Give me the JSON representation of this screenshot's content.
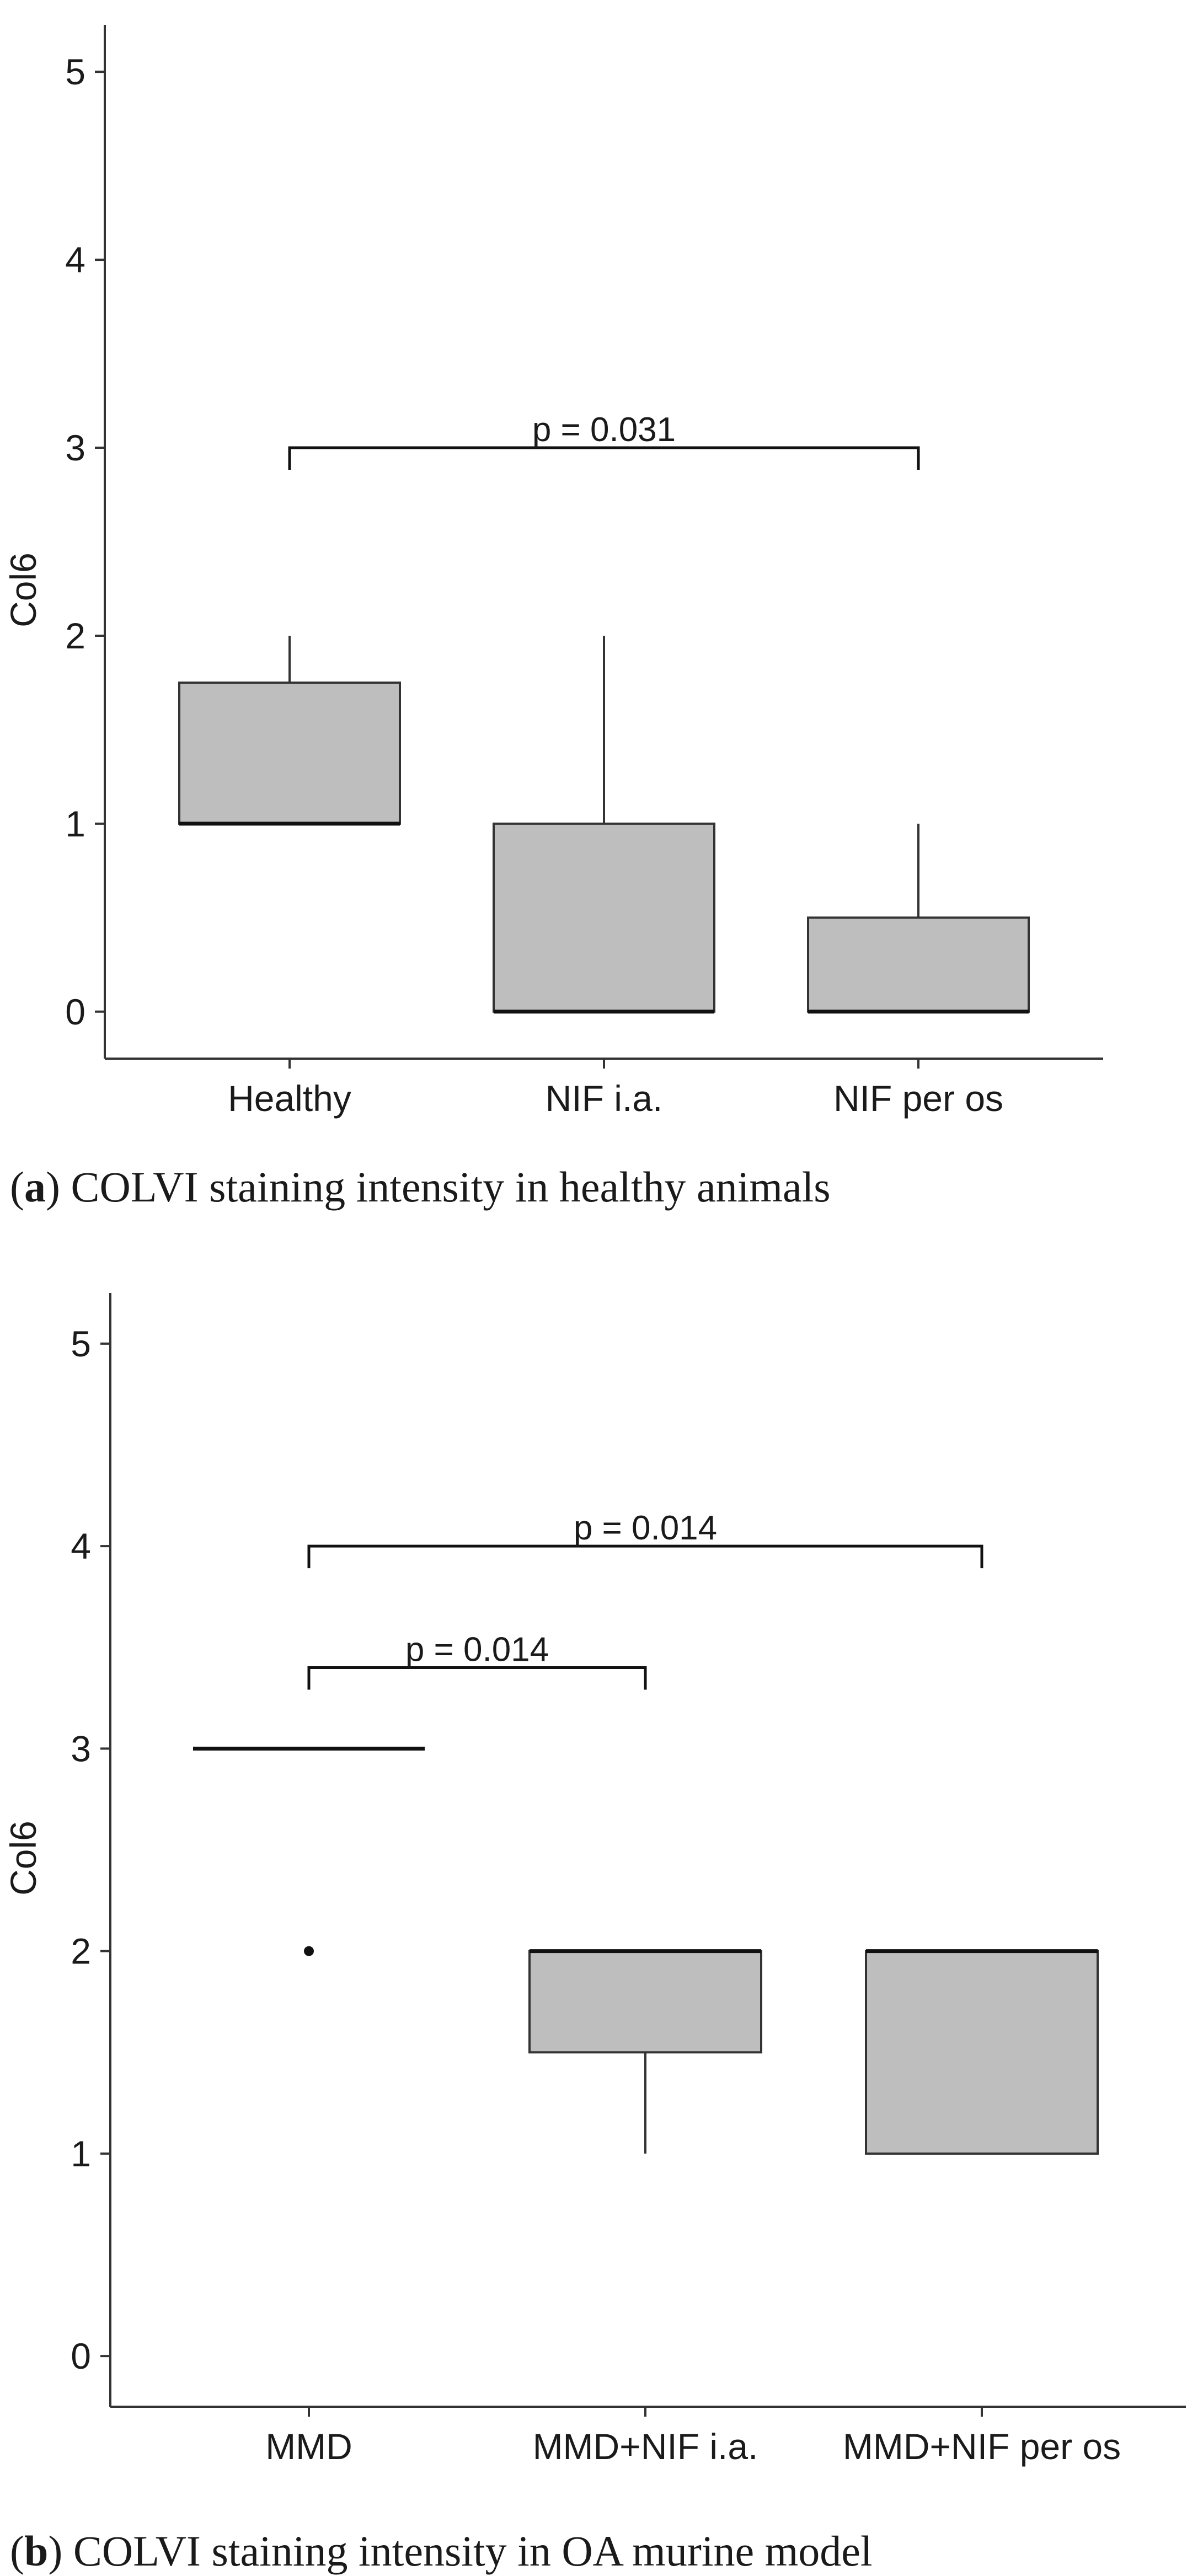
{
  "panels": [
    {
      "caption_letter": "a",
      "caption_text": "COLVI staining intensity in healthy animals",
      "chart_data": {
        "type": "box",
        "ylabel": "Col6",
        "ylim": [
          -0.25,
          5.25
        ],
        "yticks": [
          0,
          1,
          2,
          3,
          4,
          5
        ],
        "categories": [
          "Healthy",
          "NIF i.a.",
          "NIF per os"
        ],
        "boxes": [
          {
            "category": "Healthy",
            "whisker_low": 1,
            "q1": 1,
            "median": 1,
            "q3": 1.75,
            "whisker_high": 2,
            "outliers": []
          },
          {
            "category": "NIF i.a.",
            "whisker_low": 0,
            "q1": 0,
            "median": 0,
            "q3": 1,
            "whisker_high": 2,
            "outliers": []
          },
          {
            "category": "NIF per os",
            "whisker_low": 0,
            "q1": 0,
            "median": 0,
            "q3": 0.5,
            "whisker_high": 1,
            "outliers": []
          }
        ],
        "comparisons": [
          {
            "from": "Healthy",
            "to": "NIF per os",
            "y": 3.0,
            "label": "p = 0.031"
          }
        ],
        "box_fill": "#bebebe",
        "grid": false
      }
    },
    {
      "caption_letter": "b",
      "caption_text": "COLVI staining intensity in OA murine model",
      "chart_data": {
        "type": "box",
        "ylabel": "Col6",
        "ylim": [
          -0.25,
          5.25
        ],
        "yticks": [
          0,
          1,
          2,
          3,
          4,
          5
        ],
        "categories": [
          "MMD",
          "MMD+NIF i.a.",
          "MMD+NIF per os"
        ],
        "boxes": [
          {
            "category": "MMD",
            "whisker_low": 3,
            "q1": 3,
            "median": 3,
            "q3": 3,
            "whisker_high": 3,
            "outliers": [
              2
            ]
          },
          {
            "category": "MMD+NIF i.a.",
            "whisker_low": 1,
            "q1": 1.5,
            "median": 2,
            "q3": 2,
            "whisker_high": 2,
            "outliers": []
          },
          {
            "category": "MMD+NIF per os",
            "whisker_low": 1,
            "q1": 1,
            "median": 2,
            "q3": 2,
            "whisker_high": 2,
            "outliers": []
          }
        ],
        "comparisons": [
          {
            "from": "MMD",
            "to": "MMD+NIF i.a.",
            "y": 3.4,
            "label": "p = 0.014"
          },
          {
            "from": "MMD",
            "to": "MMD+NIF per os",
            "y": 4.0,
            "label": "p = 0.014"
          }
        ],
        "box_fill": "#bebebe",
        "grid": false
      }
    }
  ]
}
